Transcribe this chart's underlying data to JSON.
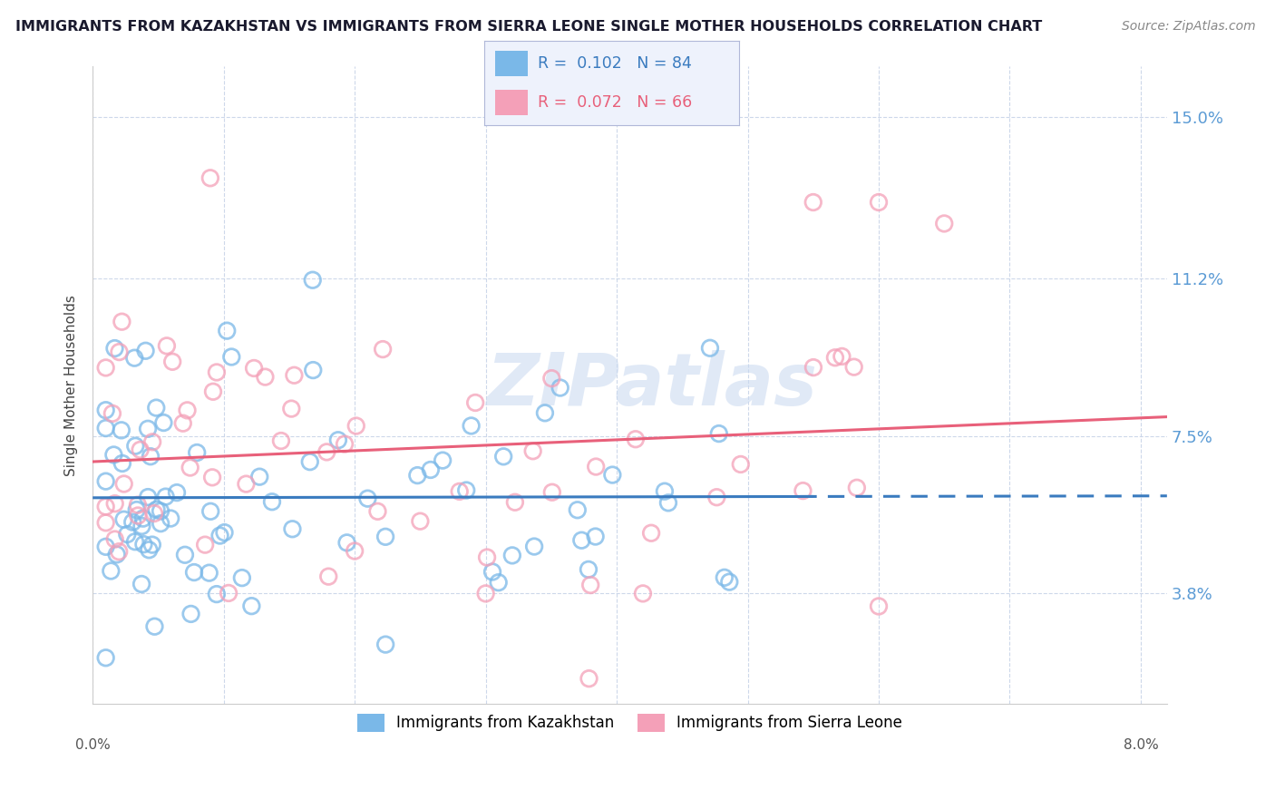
{
  "title": "IMMIGRANTS FROM KAZAKHSTAN VS IMMIGRANTS FROM SIERRA LEONE SINGLE MOTHER HOUSEHOLDS CORRELATION CHART",
  "source": "Source: ZipAtlas.com",
  "ylabel": "Single Mother Households",
  "watermark": "ZIPatlas",
  "xlim": [
    0.0,
    0.082
  ],
  "ylim": [
    0.012,
    0.162
  ],
  "xtick_positions": [
    0.0,
    0.08
  ],
  "xtick_labels": [
    "0.0%",
    "8.0%"
  ],
  "yticks": [
    0.038,
    0.075,
    0.112,
    0.15
  ],
  "ytick_labels": [
    "3.8%",
    "7.5%",
    "11.2%",
    "15.0%"
  ],
  "kazakhstan_R": 0.102,
  "kazakhstan_N": 84,
  "sierraleone_R": 0.072,
  "sierraleone_N": 66,
  "blue_color": "#7ab8e8",
  "pink_color": "#f4a0b8",
  "blue_line_color": "#3a7bbf",
  "pink_line_color": "#e8607a",
  "background_color": "#ffffff",
  "grid_color": "#c8d4e8",
  "title_color": "#1a1a2e",
  "source_color": "#888888",
  "axis_label_color": "#444444",
  "right_tick_color": "#5b9bd5"
}
